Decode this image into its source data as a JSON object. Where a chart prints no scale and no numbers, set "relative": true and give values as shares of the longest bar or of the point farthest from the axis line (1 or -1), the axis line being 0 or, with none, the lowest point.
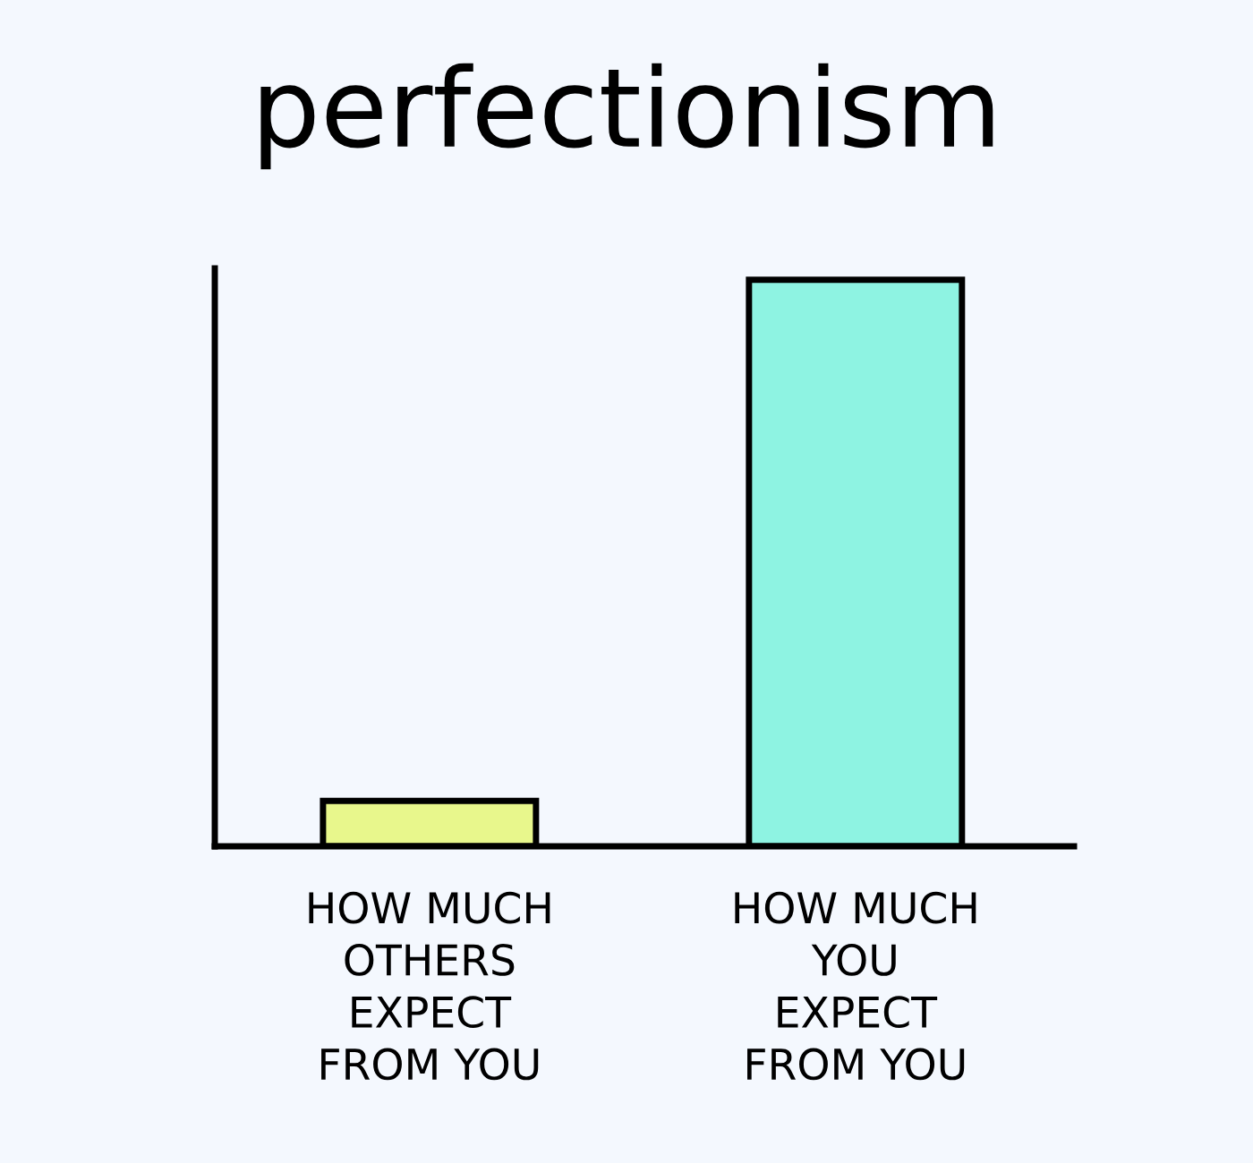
{
  "chart_data": {
    "type": "bar",
    "title": "perfectionism",
    "relative": true,
    "categories": [
      "HOW MUCH\nOTHERS\nEXPECT\nFROM YOU",
      "HOW MUCH\nYOU\nEXPECT\nFROM YOU"
    ],
    "values": [
      0.08,
      1
    ],
    "colors": [
      "#e8f78c",
      "#8ef3e2"
    ],
    "grid": false,
    "legend": false
  }
}
